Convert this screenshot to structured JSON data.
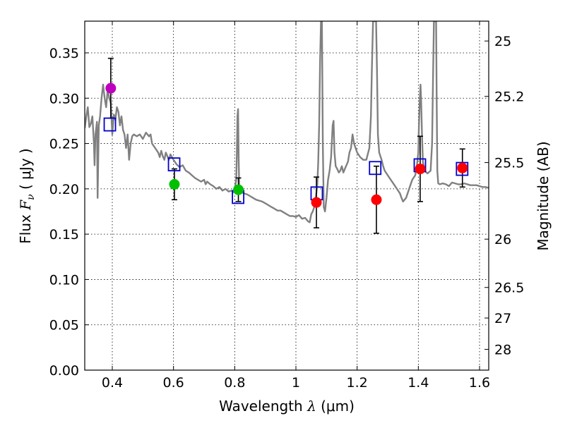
{
  "chart_data": {
    "type": "scatter",
    "xlabel": "Wavelength",
    "xlabel_symbol": "λ",
    "xlabel_unit": "(μm)",
    "ylabel": "Flux",
    "ylabel_symbol": "F",
    "ylabel_subscript": "ν",
    "ylabel_unit": "( μJy )",
    "y2label": "Magnitude (AB)",
    "xlim": [
      0.31,
      1.63
    ],
    "ylim": [
      0.0,
      0.385
    ],
    "grid": true,
    "xticks": [
      0.4,
      0.6,
      0.8,
      1.0,
      1.2,
      1.4,
      1.6
    ],
    "xtick_labels": [
      "0.4",
      "0.6",
      "0.8",
      "1",
      "1.2",
      "1.4",
      "1.6"
    ],
    "yticks": [
      0.0,
      0.05,
      0.1,
      0.15,
      0.2,
      0.25,
      0.3,
      0.35
    ],
    "ytick_labels": [
      "0.00",
      "0.05",
      "0.10",
      "0.15",
      "0.20",
      "0.25",
      "0.30",
      "0.35"
    ],
    "magnitude_ticks": [
      {
        "label": "25",
        "flux": 0.3631
      },
      {
        "label": "25.2",
        "flux": 0.302
      },
      {
        "label": "25.5",
        "flux": 0.229
      },
      {
        "label": "26",
        "flux": 0.1445
      },
      {
        "label": "26.5",
        "flux": 0.0912
      },
      {
        "label": "27",
        "flux": 0.0575
      },
      {
        "label": "28",
        "flux": 0.0229
      }
    ],
    "colors": {
      "spectrum": "#808080",
      "model": "#0000cc",
      "error": "#000000"
    },
    "observations": [
      {
        "x": 0.395,
        "y": 0.311,
        "yerr_low": 0.033,
        "yerr_high": 0.033,
        "color": "#bf00bf"
      },
      {
        "x": 0.603,
        "y": 0.205,
        "yerr_low": 0.017,
        "yerr_high": 0.017,
        "color": "#00c000"
      },
      {
        "x": 0.812,
        "y": 0.199,
        "yerr_low": 0.013,
        "yerr_high": 0.013,
        "color": "#00c000"
      },
      {
        "x": 1.067,
        "y": 0.185,
        "yerr_low": 0.028,
        "yerr_high": 0.028,
        "color": "#ff0000"
      },
      {
        "x": 1.263,
        "y": 0.188,
        "yerr_low": 0.037,
        "yerr_high": 0.037,
        "color": "#ff0000"
      },
      {
        "x": 1.406,
        "y": 0.222,
        "yerr_low": 0.036,
        "yerr_high": 0.036,
        "color": "#ff0000"
      },
      {
        "x": 1.544,
        "y": 0.223,
        "yerr_low": 0.021,
        "yerr_high": 0.021,
        "color": "#ff0000"
      }
    ],
    "model_photometry": [
      {
        "x": 0.392,
        "y": 0.271
      },
      {
        "x": 0.602,
        "y": 0.227
      },
      {
        "x": 0.811,
        "y": 0.191
      },
      {
        "x": 1.068,
        "y": 0.195
      },
      {
        "x": 1.259,
        "y": 0.223
      },
      {
        "x": 1.405,
        "y": 0.226
      },
      {
        "x": 1.543,
        "y": 0.222
      }
    ],
    "spectrum": [
      [
        0.31,
        0.267
      ],
      [
        0.315,
        0.28
      ],
      [
        0.32,
        0.29
      ],
      [
        0.325,
        0.268
      ],
      [
        0.33,
        0.272
      ],
      [
        0.335,
        0.28
      ],
      [
        0.34,
        0.25
      ],
      [
        0.342,
        0.226
      ],
      [
        0.345,
        0.26
      ],
      [
        0.35,
        0.274
      ],
      [
        0.352,
        0.19
      ],
      [
        0.356,
        0.27
      ],
      [
        0.36,
        0.28
      ],
      [
        0.365,
        0.3
      ],
      [
        0.37,
        0.315
      ],
      [
        0.375,
        0.3
      ],
      [
        0.38,
        0.29
      ],
      [
        0.385,
        0.31
      ],
      [
        0.39,
        0.3
      ],
      [
        0.395,
        0.295
      ],
      [
        0.4,
        0.26
      ],
      [
        0.405,
        0.282
      ],
      [
        0.41,
        0.276
      ],
      [
        0.415,
        0.29
      ],
      [
        0.42,
        0.285
      ],
      [
        0.425,
        0.27
      ],
      [
        0.43,
        0.28
      ],
      [
        0.435,
        0.265
      ],
      [
        0.44,
        0.26
      ],
      [
        0.445,
        0.245
      ],
      [
        0.45,
        0.26
      ],
      [
        0.455,
        0.232
      ],
      [
        0.46,
        0.25
      ],
      [
        0.465,
        0.258
      ],
      [
        0.47,
        0.26
      ],
      [
        0.48,
        0.258
      ],
      [
        0.49,
        0.26
      ],
      [
        0.5,
        0.255
      ],
      [
        0.51,
        0.262
      ],
      [
        0.52,
        0.258
      ],
      [
        0.525,
        0.26
      ],
      [
        0.53,
        0.25
      ],
      [
        0.54,
        0.245
      ],
      [
        0.55,
        0.24
      ],
      [
        0.555,
        0.235
      ],
      [
        0.56,
        0.242
      ],
      [
        0.565,
        0.236
      ],
      [
        0.57,
        0.232
      ],
      [
        0.575,
        0.24
      ],
      [
        0.58,
        0.236
      ],
      [
        0.585,
        0.232
      ],
      [
        0.59,
        0.238
      ],
      [
        0.6,
        0.232
      ],
      [
        0.61,
        0.227
      ],
      [
        0.62,
        0.224
      ],
      [
        0.63,
        0.226
      ],
      [
        0.64,
        0.22
      ],
      [
        0.65,
        0.218
      ],
      [
        0.66,
        0.215
      ],
      [
        0.67,
        0.212
      ],
      [
        0.68,
        0.21
      ],
      [
        0.69,
        0.208
      ],
      [
        0.7,
        0.21
      ],
      [
        0.705,
        0.205
      ],
      [
        0.71,
        0.208
      ],
      [
        0.72,
        0.205
      ],
      [
        0.73,
        0.203
      ],
      [
        0.74,
        0.2
      ],
      [
        0.75,
        0.202
      ],
      [
        0.76,
        0.198
      ],
      [
        0.77,
        0.2
      ],
      [
        0.78,
        0.197
      ],
      [
        0.79,
        0.198
      ],
      [
        0.795,
        0.196
      ],
      [
        0.8,
        0.2
      ],
      [
        0.805,
        0.21
      ],
      [
        0.807,
        0.24
      ],
      [
        0.809,
        0.28
      ],
      [
        0.811,
        0.288
      ],
      [
        0.813,
        0.23
      ],
      [
        0.815,
        0.2
      ],
      [
        0.82,
        0.197
      ],
      [
        0.83,
        0.195
      ],
      [
        0.84,
        0.194
      ],
      [
        0.85,
        0.192
      ],
      [
        0.86,
        0.19
      ],
      [
        0.87,
        0.188
      ],
      [
        0.88,
        0.187
      ],
      [
        0.89,
        0.186
      ],
      [
        0.9,
        0.184
      ],
      [
        0.91,
        0.182
      ],
      [
        0.92,
        0.18
      ],
      [
        0.93,
        0.178
      ],
      [
        0.94,
        0.176
      ],
      [
        0.95,
        0.176
      ],
      [
        0.96,
        0.174
      ],
      [
        0.97,
        0.172
      ],
      [
        0.98,
        0.17
      ],
      [
        0.99,
        0.17
      ],
      [
        1.0,
        0.169
      ],
      [
        1.01,
        0.171
      ],
      [
        1.02,
        0.167
      ],
      [
        1.03,
        0.168
      ],
      [
        1.04,
        0.164
      ],
      [
        1.045,
        0.163
      ],
      [
        1.05,
        0.172
      ],
      [
        1.055,
        0.175
      ],
      [
        1.06,
        0.18
      ],
      [
        1.065,
        0.19
      ],
      [
        1.07,
        0.205
      ],
      [
        1.073,
        0.23
      ],
      [
        1.076,
        0.27
      ],
      [
        1.079,
        0.34
      ],
      [
        1.082,
        0.385
      ],
      [
        1.085,
        0.385
      ],
      [
        1.088,
        0.25
      ],
      [
        1.091,
        0.18
      ],
      [
        1.095,
        0.175
      ],
      [
        1.1,
        0.19
      ],
      [
        1.105,
        0.21
      ],
      [
        1.11,
        0.22
      ],
      [
        1.115,
        0.235
      ],
      [
        1.12,
        0.27
      ],
      [
        1.123,
        0.275
      ],
      [
        1.126,
        0.24
      ],
      [
        1.13,
        0.225
      ],
      [
        1.135,
        0.222
      ],
      [
        1.14,
        0.218
      ],
      [
        1.145,
        0.22
      ],
      [
        1.15,
        0.225
      ],
      [
        1.155,
        0.218
      ],
      [
        1.16,
        0.222
      ],
      [
        1.17,
        0.23
      ],
      [
        1.175,
        0.24
      ],
      [
        1.18,
        0.245
      ],
      [
        1.185,
        0.26
      ],
      [
        1.19,
        0.25
      ],
      [
        1.2,
        0.24
      ],
      [
        1.21,
        0.235
      ],
      [
        1.22,
        0.232
      ],
      [
        1.23,
        0.232
      ],
      [
        1.24,
        0.245
      ],
      [
        1.245,
        0.28
      ],
      [
        1.248,
        0.33
      ],
      [
        1.252,
        0.385
      ],
      [
        1.262,
        0.385
      ],
      [
        1.265,
        0.33
      ],
      [
        1.268,
        0.26
      ],
      [
        1.272,
        0.24
      ],
      [
        1.28,
        0.232
      ],
      [
        1.285,
        0.225
      ],
      [
        1.29,
        0.22
      ],
      [
        1.3,
        0.215
      ],
      [
        1.31,
        0.21
      ],
      [
        1.32,
        0.205
      ],
      [
        1.33,
        0.2
      ],
      [
        1.34,
        0.195
      ],
      [
        1.345,
        0.19
      ],
      [
        1.35,
        0.186
      ],
      [
        1.36,
        0.19
      ],
      [
        1.37,
        0.2
      ],
      [
        1.38,
        0.21
      ],
      [
        1.39,
        0.215
      ],
      [
        1.395,
        0.225
      ],
      [
        1.4,
        0.24
      ],
      [
        1.402,
        0.27
      ],
      [
        1.405,
        0.3
      ],
      [
        1.407,
        0.315
      ],
      [
        1.409,
        0.3
      ],
      [
        1.412,
        0.26
      ],
      [
        1.415,
        0.23
      ],
      [
        1.42,
        0.22
      ],
      [
        1.43,
        0.217
      ],
      [
        1.44,
        0.22
      ],
      [
        1.445,
        0.25
      ],
      [
        1.448,
        0.32
      ],
      [
        1.451,
        0.385
      ],
      [
        1.458,
        0.385
      ],
      [
        1.46,
        0.3
      ],
      [
        1.462,
        0.22
      ],
      [
        1.465,
        0.206
      ],
      [
        1.47,
        0.205
      ],
      [
        1.48,
        0.206
      ],
      [
        1.49,
        0.205
      ],
      [
        1.5,
        0.203
      ],
      [
        1.51,
        0.207
      ],
      [
        1.52,
        0.206
      ],
      [
        1.53,
        0.205
      ],
      [
        1.54,
        0.205
      ],
      [
        1.55,
        0.206
      ],
      [
        1.56,
        0.205
      ],
      [
        1.57,
        0.204
      ],
      [
        1.58,
        0.204
      ],
      [
        1.59,
        0.204
      ],
      [
        1.6,
        0.203
      ],
      [
        1.61,
        0.202
      ],
      [
        1.62,
        0.202
      ],
      [
        1.63,
        0.201
      ]
    ]
  }
}
